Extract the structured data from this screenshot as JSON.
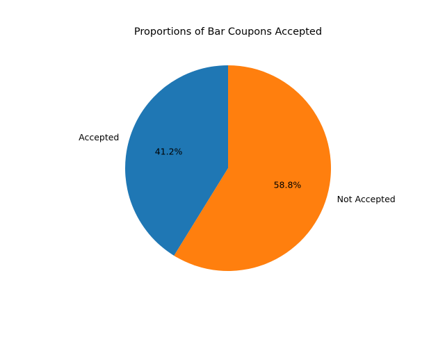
{
  "chart_data": {
    "type": "pie",
    "title": "Proportions of Bar Coupons Accepted",
    "labels": [
      "Accepted",
      "Not Accepted"
    ],
    "values": [
      41.2,
      58.8
    ],
    "percent_labels": [
      "41.2%",
      "58.8%"
    ],
    "colors": [
      "#1f77b4",
      "#ff7f0e"
    ],
    "start_angle_deg": 90,
    "direction": "counterclockwise",
    "legend": false
  }
}
